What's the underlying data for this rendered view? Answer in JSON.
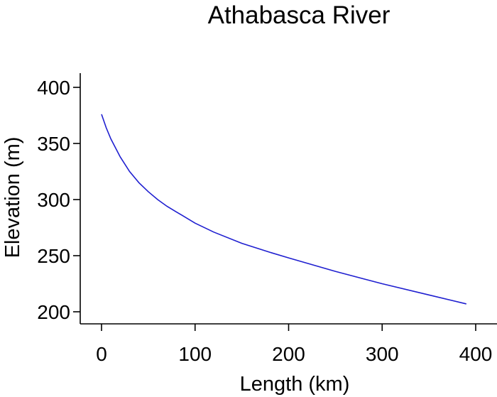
{
  "chart_data": {
    "type": "line",
    "title": "Athabasca River",
    "xlabel": "Length (km)",
    "ylabel": "Elevation (m)",
    "xlim": [
      0,
      400
    ],
    "ylim": [
      200,
      400
    ],
    "xticks": [
      0,
      100,
      200,
      300,
      400
    ],
    "yticks": [
      200,
      250,
      300,
      350,
      400
    ],
    "grid": false,
    "series": [
      {
        "color": "#1f1fd0",
        "x": [
          0,
          5,
          10,
          20,
          30,
          40,
          50,
          60,
          70,
          80,
          100,
          120,
          150,
          180,
          200,
          250,
          300,
          350,
          390
        ],
        "y": [
          376,
          364,
          354,
          338,
          325,
          315,
          307,
          300,
          294,
          289,
          279,
          271,
          261,
          253,
          248,
          236,
          225,
          215,
          207
        ]
      }
    ]
  }
}
